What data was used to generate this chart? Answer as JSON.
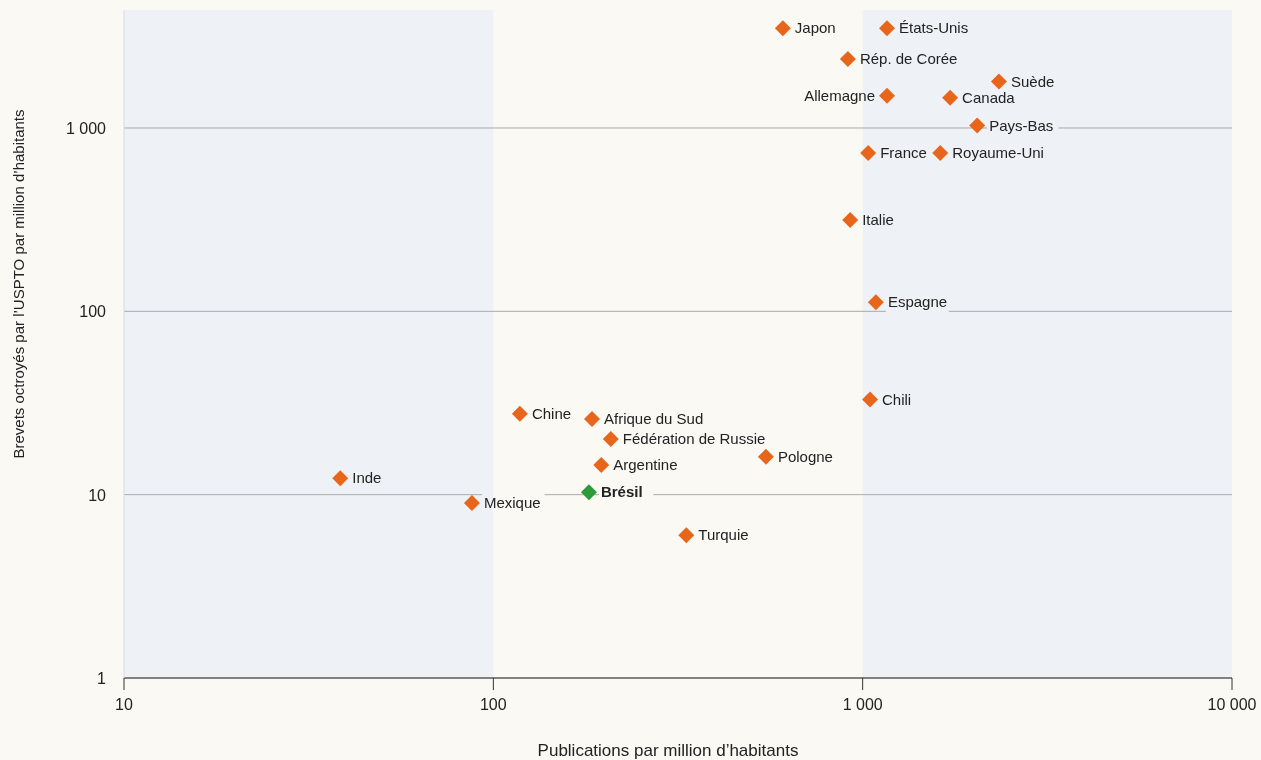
{
  "chart_data": {
    "type": "scatter",
    "xlabel": "Publications par million d’habitants",
    "ylabel": "Brevets octroyés par l’USPTO par million d’habitants",
    "log": "xy",
    "xlim": [
      10,
      10000
    ],
    "ylim": [
      1,
      4400
    ],
    "xticks": [
      10,
      100,
      {
        "value": 1000,
        "label": "1 000"
      },
      {
        "value": 10000,
        "label": "10 000"
      }
    ],
    "yticks": [
      1,
      10,
      100,
      {
        "value": 1000,
        "label": "1 000"
      }
    ],
    "grid": "y",
    "marker": "diamond",
    "bands": [
      {
        "axis": "x",
        "from": 10,
        "to": 100,
        "color": "#eef2f7"
      },
      {
        "axis": "x",
        "from": 1000,
        "to": 10000,
        "color": "#eef2f7"
      }
    ],
    "series": [
      {
        "color": "#e8661c",
        "x": [
          608,
          1164,
          912,
          2339,
          1164,
          1725,
          2042,
          1035,
          1622,
          925,
          1086,
          1047,
          118,
          185,
          208,
          196,
          547,
          38.5,
          87.5,
          333
        ],
        "values": [
          3500,
          3500,
          2380,
          1790,
          1500,
          1460,
          1030,
          730,
          730,
          315,
          112,
          33,
          27.6,
          25.9,
          20.1,
          14.5,
          16.1,
          12.3,
          9.0,
          6.0
        ]
      },
      {
        "color": "#2e9b3a",
        "x": [
          181.5
        ],
        "values": [
          10.3
        ]
      }
    ],
    "annotations": [
      {
        "text": "Japon",
        "x": 608,
        "y": 3500
      },
      {
        "text": "États-Unis",
        "x": 1164,
        "y": 3500
      },
      {
        "text": "Rép. de Corée",
        "x": 912,
        "y": 2380
      },
      {
        "text": "Suède",
        "x": 2339,
        "y": 1790
      },
      {
        "text": "Allemagne",
        "x": 1164,
        "y": 1500
      },
      {
        "text": "Canada",
        "x": 1725,
        "y": 1460
      },
      {
        "text": "Pays-Bas",
        "x": 2042,
        "y": 1030
      },
      {
        "text": "France",
        "x": 1035,
        "y": 730
      },
      {
        "text": "Royaume-Uni",
        "x": 1622,
        "y": 730
      },
      {
        "text": "Italie",
        "x": 925,
        "y": 315
      },
      {
        "text": "Espagne",
        "x": 1086,
        "y": 112
      },
      {
        "text": "Chili",
        "x": 1047,
        "y": 33
      },
      {
        "text": "Chine",
        "x": 118,
        "y": 27.6
      },
      {
        "text": "Afrique du Sud",
        "x": 185,
        "y": 25.9
      },
      {
        "text": "Fédération de Russie",
        "x": 208,
        "y": 20.1
      },
      {
        "text": "Argentine",
        "x": 196,
        "y": 14.5
      },
      {
        "text": "Pologne",
        "x": 547,
        "y": 16.1
      },
      {
        "text": "Inde",
        "x": 38.5,
        "y": 12.3
      },
      {
        "text": "Mexique",
        "x": 87.5,
        "y": 9.0
      },
      {
        "text": "Turquie",
        "x": 333,
        "y": 6.0
      },
      {
        "text": "Brésil",
        "x": 181.5,
        "y": 10.3
      }
    ]
  }
}
